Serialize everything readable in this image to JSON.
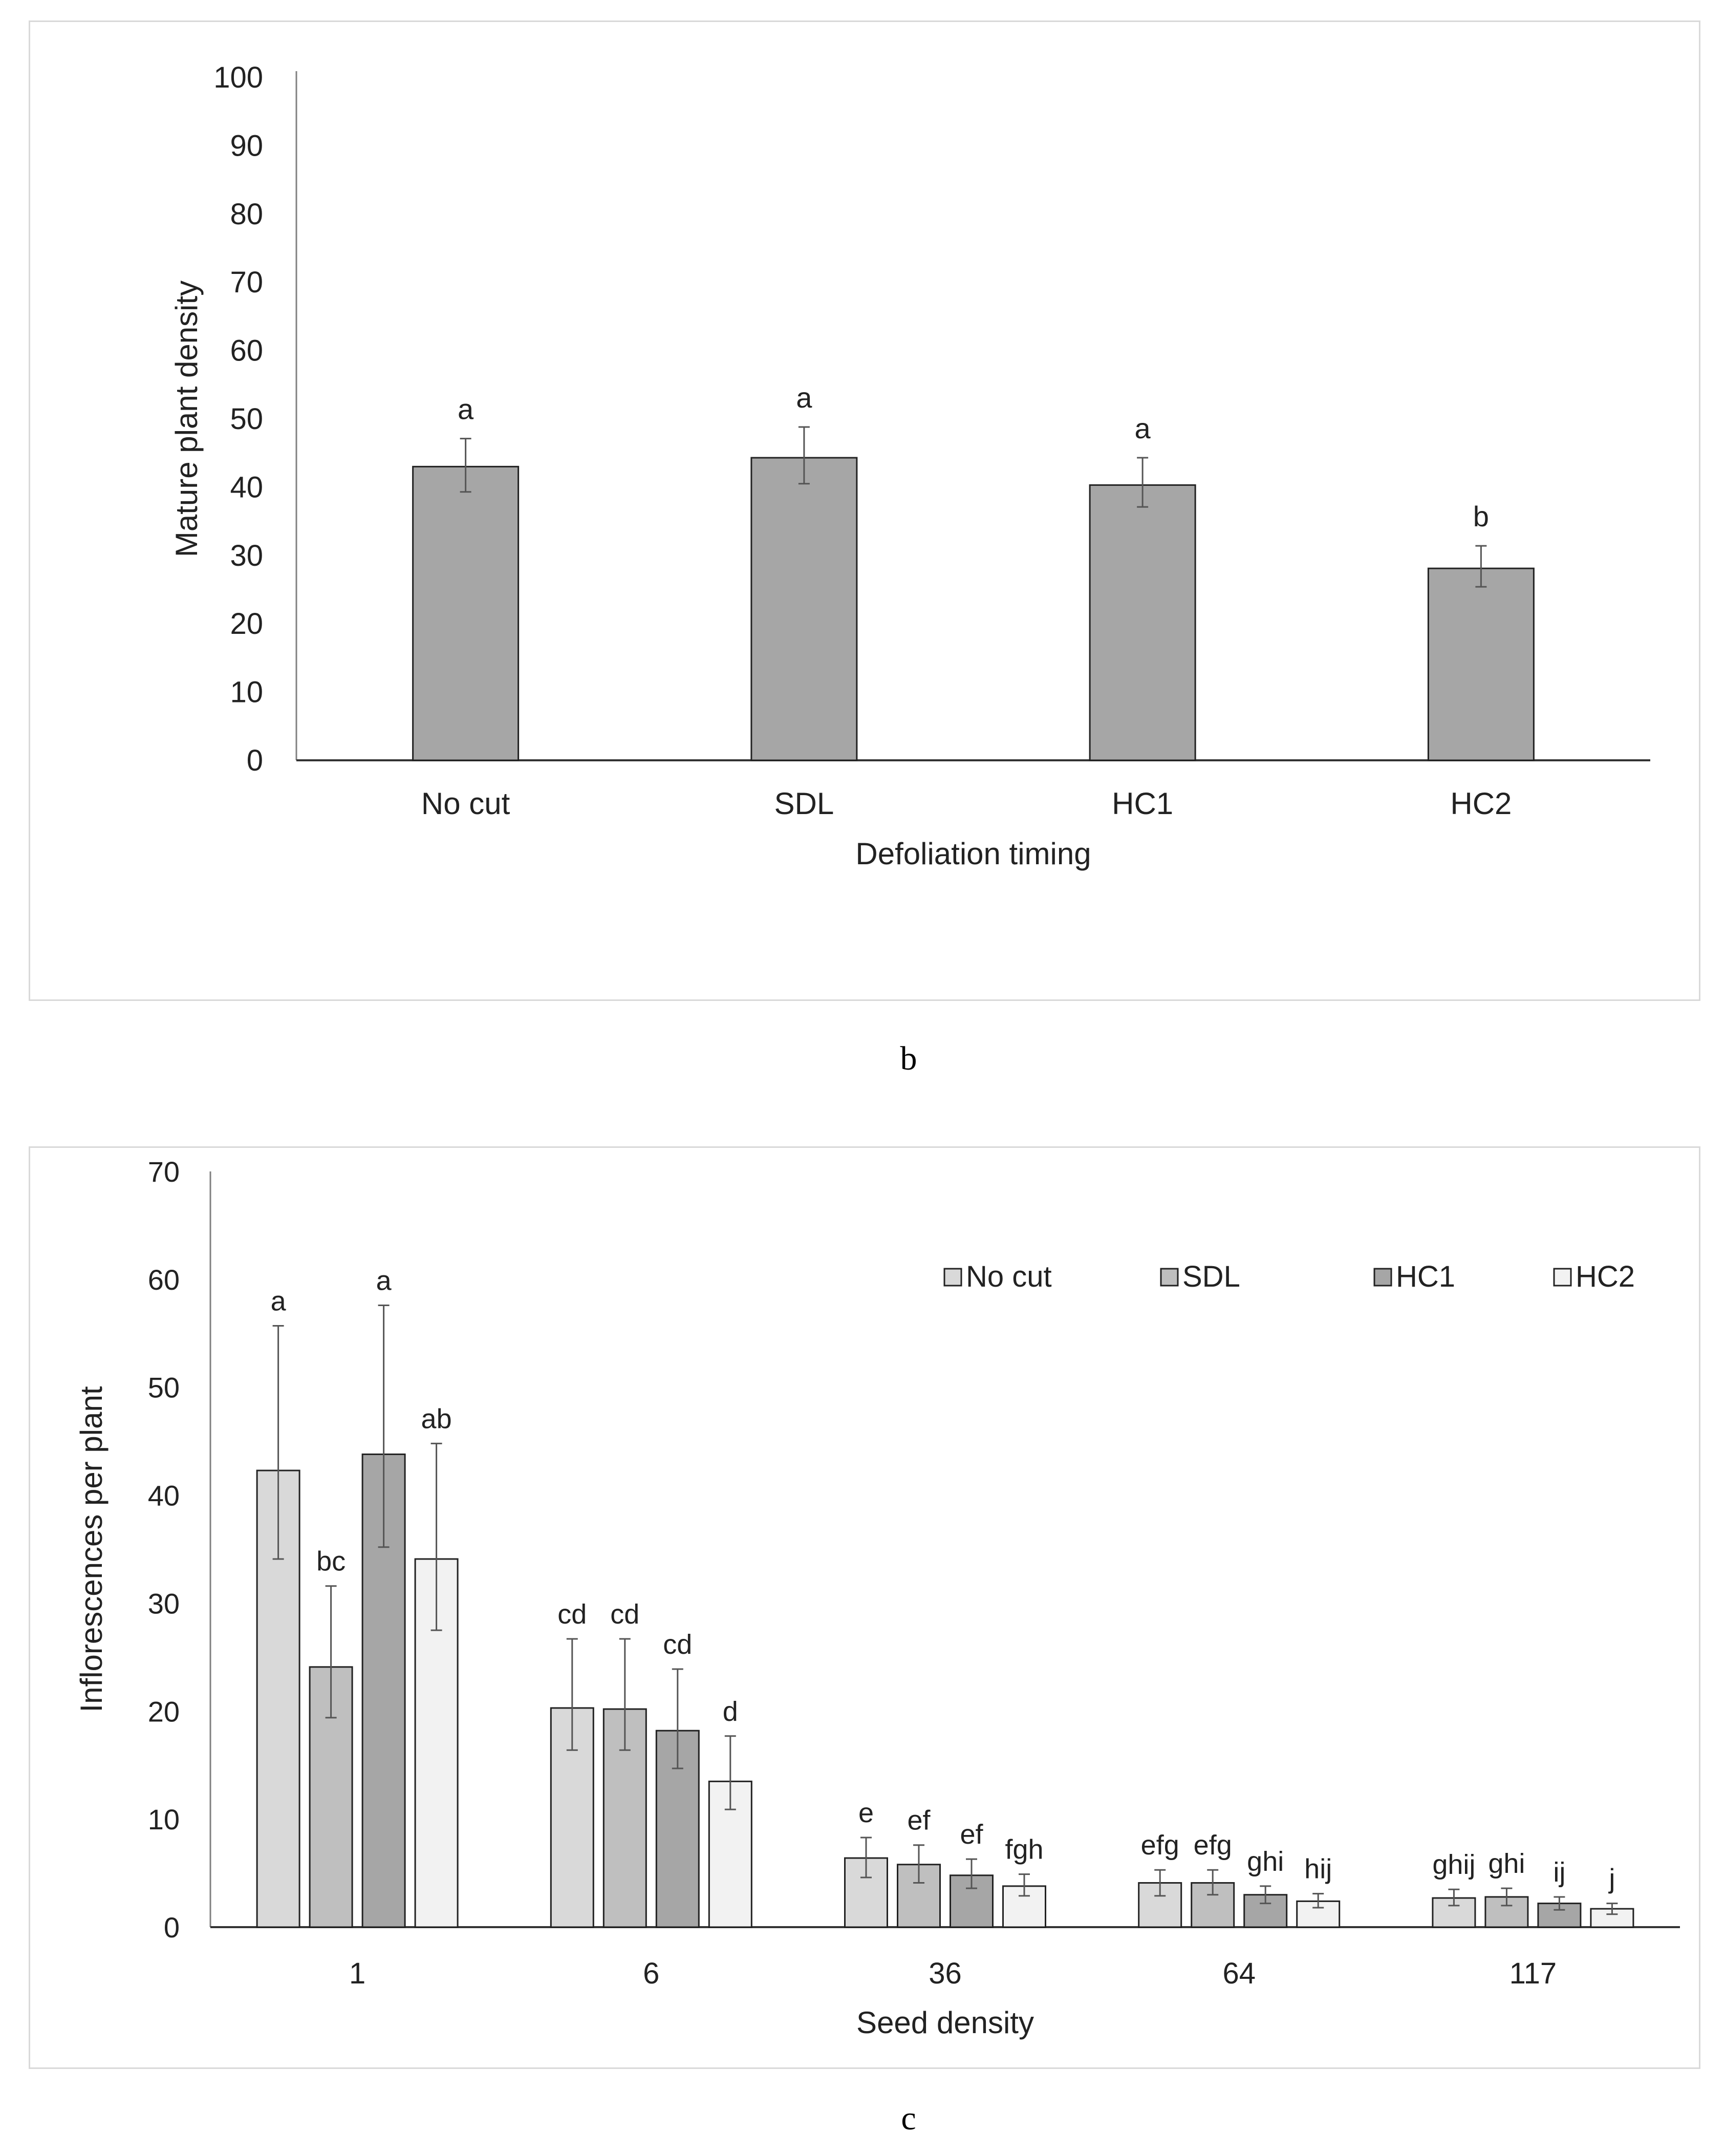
{
  "captions": {
    "b": "b",
    "c": "c"
  },
  "chart_data": [
    {
      "type": "bar",
      "xlabel": "Defoliation timing",
      "ylabel": "Mature plant density",
      "ylim": [
        0,
        100
      ],
      "yticks": [
        "0",
        "10",
        "20",
        "30",
        "40",
        "50",
        "60",
        "70",
        "80",
        "90",
        "100"
      ],
      "categories": [
        "No cut",
        "SDL",
        "HC1",
        "HC2"
      ],
      "values": [
        43,
        44.3,
        40.3,
        28.1
      ],
      "error_low": [
        39.3,
        40.5,
        37.1,
        25.4
      ],
      "error_high": [
        47.1,
        48.8,
        44.3,
        31.4
      ],
      "letters": [
        "a",
        "a",
        "a",
        "b"
      ],
      "bar_color": "#a6a6a6"
    },
    {
      "type": "bar",
      "xlabel": "Seed density",
      "ylabel": "Inflorescences per plant",
      "ylim": [
        0,
        70
      ],
      "yticks": [
        "0",
        "10",
        "20",
        "30",
        "40",
        "50",
        "60",
        "70"
      ],
      "categories": [
        "1",
        "6",
        "36",
        "64",
        "117"
      ],
      "legend_position": "top-right",
      "series": [
        {
          "name": "No cut",
          "color": "#d9d9d9",
          "values": [
            42.3,
            20.3,
            6.4,
            4.1,
            2.7
          ],
          "error_low": [
            34.1,
            16.4,
            4.6,
            2.9,
            2.0
          ],
          "error_high": [
            55.7,
            26.7,
            8.3,
            5.3,
            3.5
          ],
          "letters": [
            "a",
            "cd",
            "e",
            "efg",
            "ghij"
          ]
        },
        {
          "name": "SDL",
          "color": "#bfbfbf",
          "values": [
            24.1,
            20.2,
            5.8,
            4.1,
            2.8
          ],
          "error_low": [
            19.4,
            16.4,
            4.1,
            3.0,
            2.0
          ],
          "error_high": [
            31.6,
            26.7,
            7.6,
            5.3,
            3.6
          ],
          "letters": [
            "bc",
            "cd",
            "ef",
            "efg",
            "ghi"
          ]
        },
        {
          "name": "HC1",
          "color": "#a6a6a6",
          "values": [
            43.8,
            18.2,
            4.8,
            3.0,
            2.2
          ],
          "error_low": [
            35.2,
            14.7,
            3.6,
            2.2,
            1.6
          ],
          "error_high": [
            57.6,
            23.9,
            6.3,
            3.8,
            2.8
          ],
          "letters": [
            "a",
            "cd",
            "ef",
            "ghi",
            "ij"
          ]
        },
        {
          "name": "HC2",
          "color": "#f2f2f2",
          "values": [
            34.1,
            13.5,
            3.8,
            2.4,
            1.7
          ],
          "error_low": [
            27.5,
            10.9,
            2.9,
            1.8,
            1.2
          ],
          "error_high": [
            44.8,
            17.7,
            4.9,
            3.1,
            2.2
          ],
          "letters": [
            "ab",
            "d",
            "fgh",
            "hij",
            "j"
          ]
        }
      ]
    }
  ]
}
